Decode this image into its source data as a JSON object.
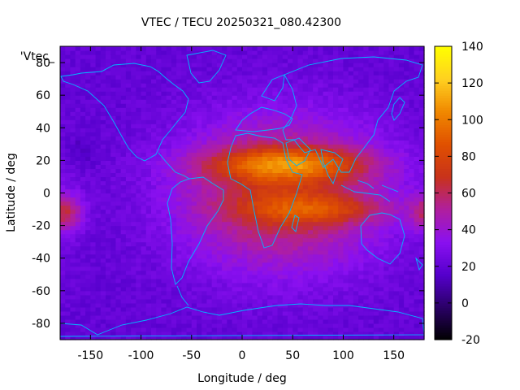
{
  "chart_data": {
    "type": "heatmap",
    "title": "VTEC / TECU 20250321_080.42300",
    "legend_label": "'Vtec_",
    "xlabel": "Longitude / deg",
    "ylabel": "Latitude / deg",
    "xlim": [
      -180,
      180
    ],
    "ylim": [
      -90,
      90
    ],
    "x_ticks": [
      -150,
      -100,
      -50,
      0,
      50,
      100,
      150
    ],
    "y_ticks": [
      -80,
      -60,
      -40,
      -20,
      0,
      20,
      40,
      60,
      80
    ],
    "colorbar": {
      "min": -20,
      "max": 140,
      "ticks": [
        -20,
        0,
        20,
        40,
        60,
        80,
        100,
        120,
        140
      ],
      "palette": [
        "#000000",
        "#2a0066",
        "#5500cc",
        "#8a10f0",
        "#b01f9e",
        "#c8321b",
        "#e05000",
        "#f08800",
        "#ffd020",
        "#ffff00"
      ]
    },
    "grid_resolution": {
      "lon_step": 5,
      "lat_step": 2.5
    },
    "ionosphere_features": {
      "background_vtec": 20,
      "equatorial_crest_north": {
        "lat": 18,
        "lon_center": 45,
        "peak_vtec": 118,
        "lon_extent": [
          -40,
          170
        ]
      },
      "equatorial_crest_south": {
        "lat": -10,
        "lon_center": 75,
        "peak_vtec": 100,
        "lon_extent": [
          -40,
          170
        ]
      },
      "daytime_bulge": {
        "lat": 0,
        "lon_center": 40,
        "peak_vtec": 70,
        "lon_extent": [
          -70,
          165
        ]
      },
      "ridge_west_anomaly": {
        "lat": -12,
        "lon_center": -175,
        "peak_vtec": 55
      },
      "cold_spot_pacific": {
        "lat": 25,
        "lon_center": -160,
        "vtec": 14
      }
    },
    "overlay": "continental coastlines"
  }
}
